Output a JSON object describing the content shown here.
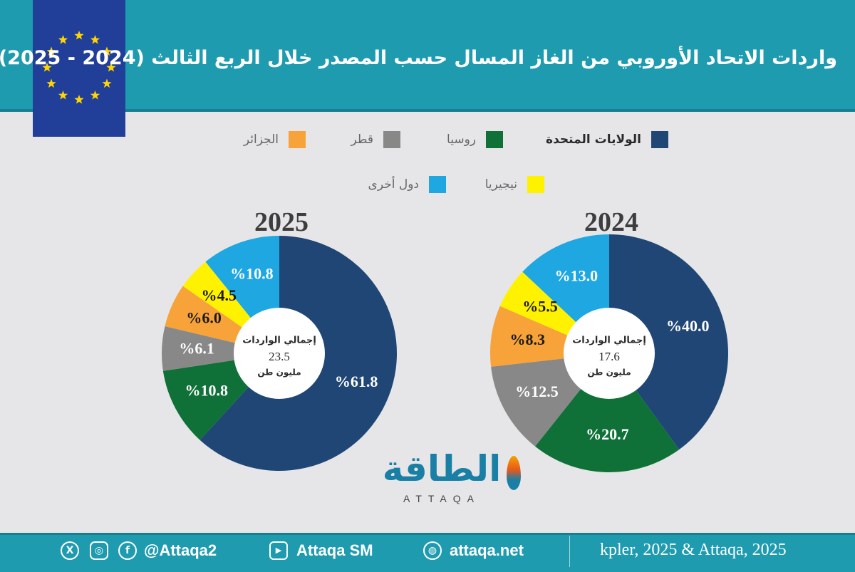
{
  "title": "واردات الاتحاد الأوروبي من الغاز المسال حسب المصدر خلال الربع الثالث (2024 - 2025)",
  "colors": {
    "united_states": "#1f4675",
    "russia": "#0f7137",
    "qatar": "#888888",
    "algeria": "#f7a33a",
    "nigeria": "#fff200",
    "others": "#1ea7e1",
    "header": "#1f9baf",
    "flag": "#213f99",
    "stars": "#ffd400"
  },
  "legend": [
    {
      "key": "united_states",
      "label": "الولايات المتحدة"
    },
    {
      "key": "russia",
      "label": "روسيا"
    },
    {
      "key": "qatar",
      "label": "قطر"
    },
    {
      "key": "algeria",
      "label": "الجزائر"
    },
    {
      "key": "nigeria",
      "label": "نيجيريا"
    },
    {
      "key": "others",
      "label": "دول أخرى"
    }
  ],
  "chart_data": [
    {
      "type": "pie",
      "title": "2024",
      "center_label": "إجمالي الواردات",
      "center_value": "17.6",
      "center_unit": "مليون طن",
      "slices": [
        {
          "key": "united_states",
          "value": 40.0,
          "label": "%40.0"
        },
        {
          "key": "russia",
          "value": 20.7,
          "label": "%20.7"
        },
        {
          "key": "qatar",
          "value": 12.5,
          "label": "%12.5"
        },
        {
          "key": "algeria",
          "value": 8.3,
          "label": "%8.3"
        },
        {
          "key": "nigeria",
          "value": 5.5,
          "label": "%5.5"
        },
        {
          "key": "others",
          "value": 13.0,
          "label": "%13.0"
        }
      ]
    },
    {
      "type": "pie",
      "title": "2025",
      "center_label": "إجمالي الواردات",
      "center_value": "23.5",
      "center_unit": "مليون طن",
      "slices": [
        {
          "key": "united_states",
          "value": 61.8,
          "label": "%61.8"
        },
        {
          "key": "russia",
          "value": 10.8,
          "label": "%10.8"
        },
        {
          "key": "qatar",
          "value": 6.1,
          "label": "%6.1"
        },
        {
          "key": "algeria",
          "value": 6.0,
          "label": "%6.0"
        },
        {
          "key": "nigeria",
          "value": 4.5,
          "label": "%4.5"
        },
        {
          "key": "others",
          "value": 10.8,
          "label": "%10.8"
        }
      ]
    }
  ],
  "logo": {
    "arabic": "الطاقة",
    "latin": "ATTAQA"
  },
  "footer": {
    "handle": "@Attaqa2",
    "youtube": "Attaqa SM",
    "website": "attaqa.net",
    "source": "kpler, 2025 & Attaqa, 2025",
    "icons": [
      "x-icon",
      "instagram-icon",
      "facebook-icon",
      "youtube-icon",
      "globe-icon"
    ]
  }
}
